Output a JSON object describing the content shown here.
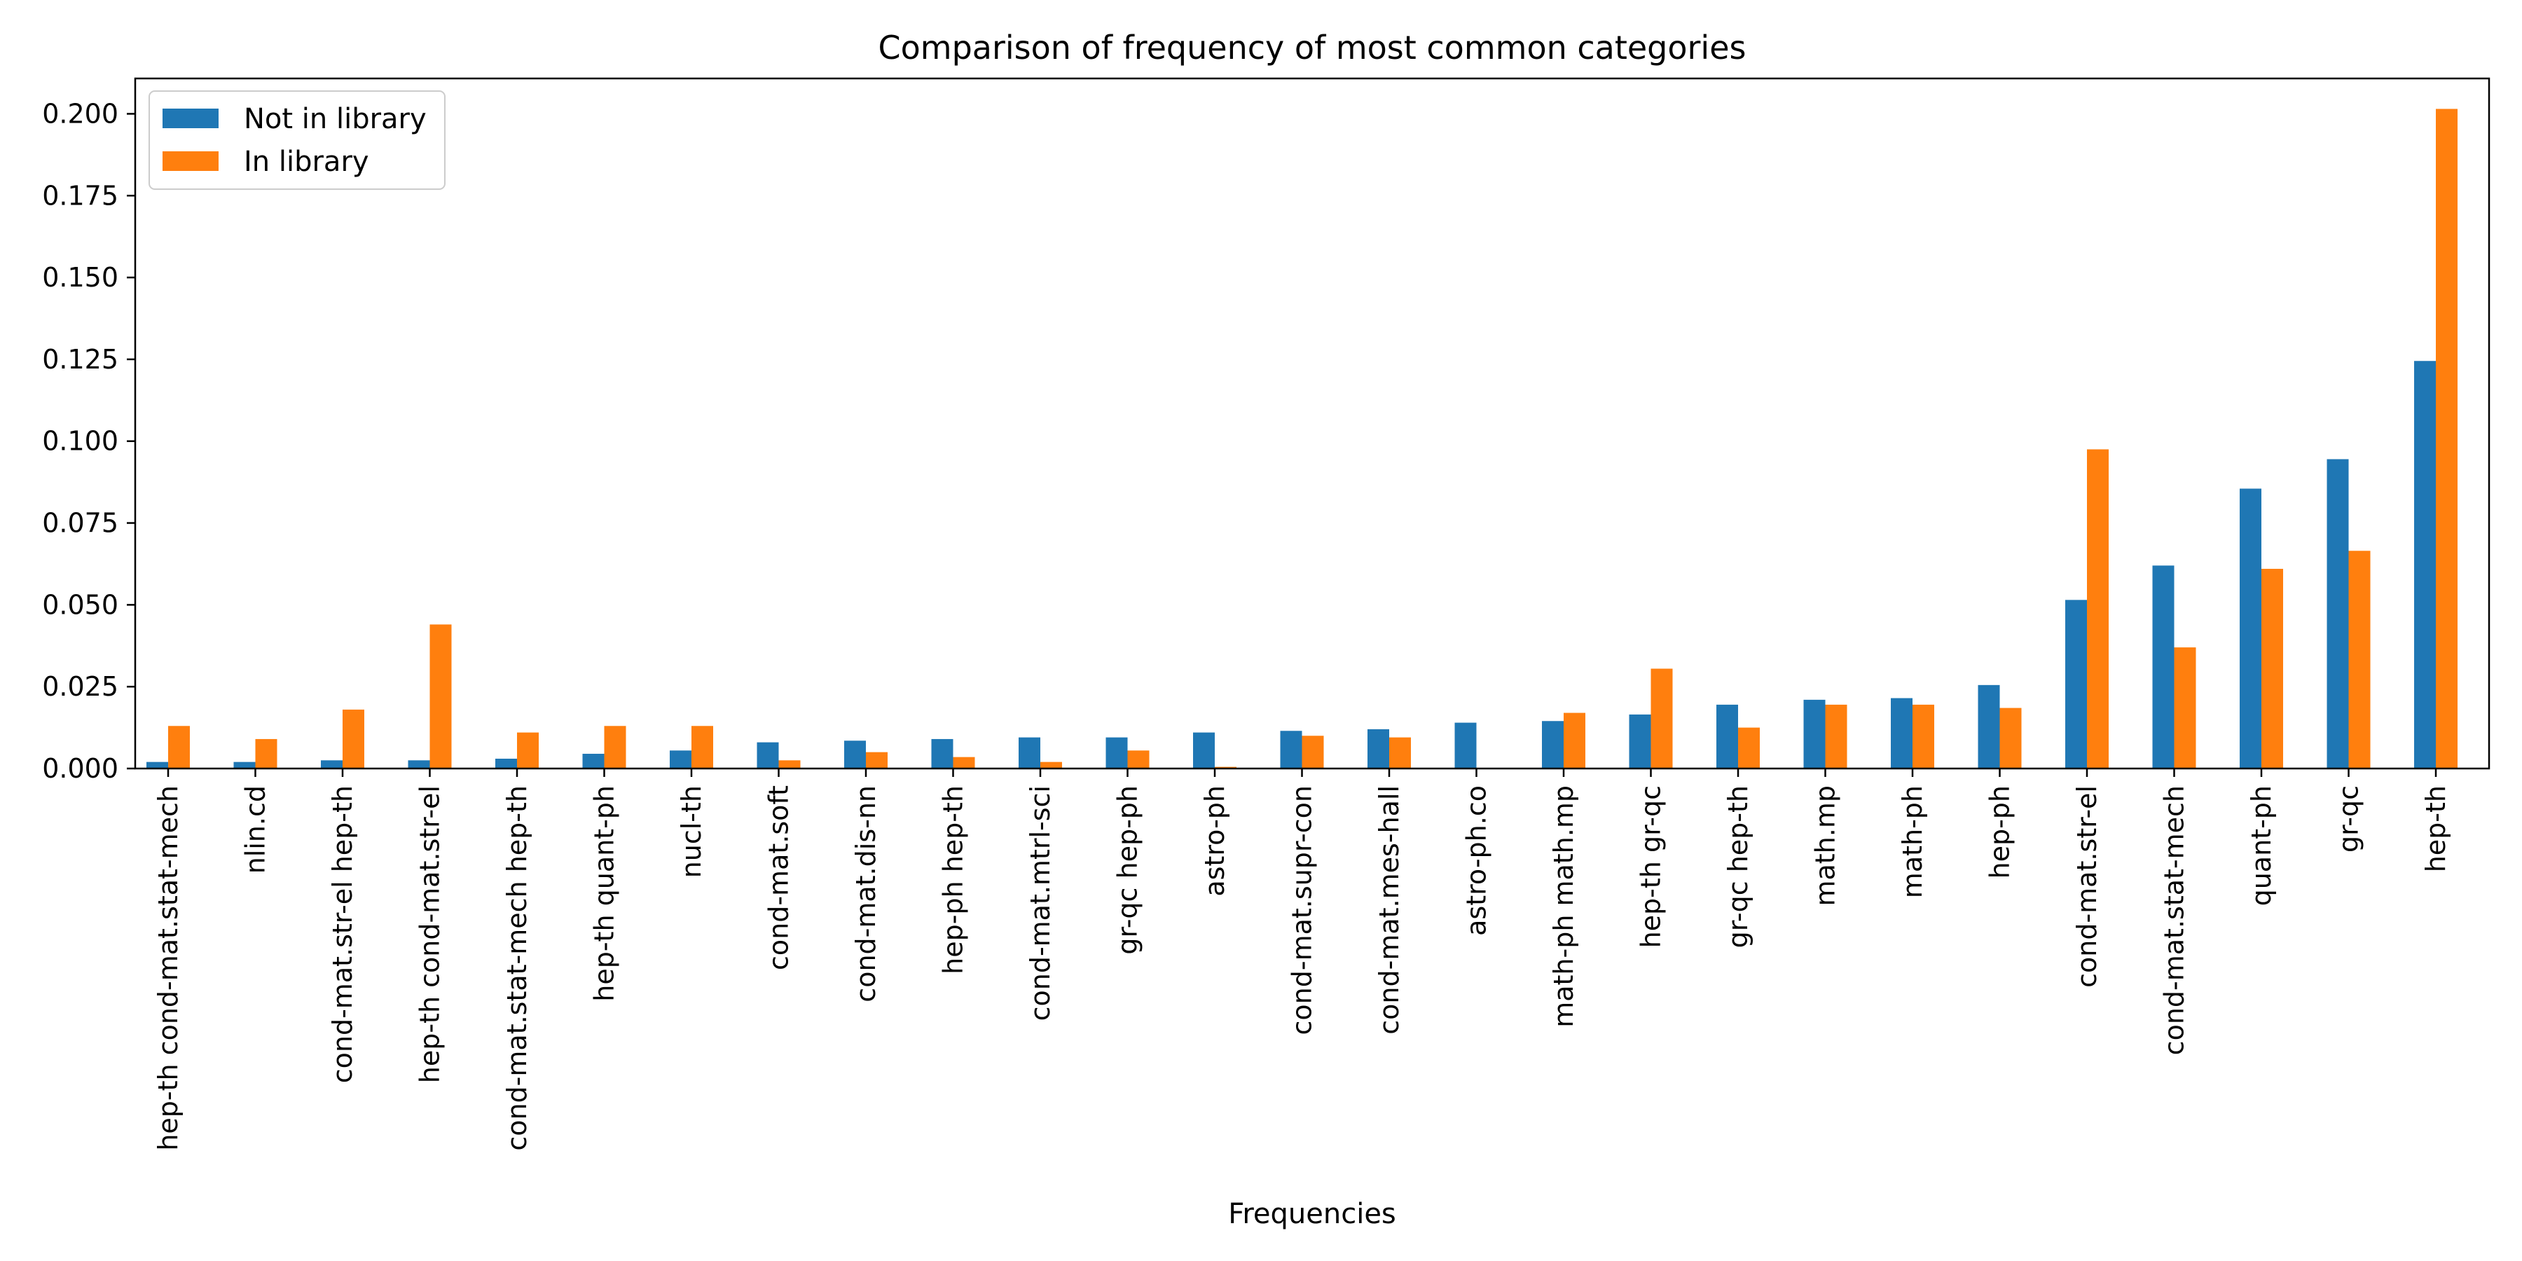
{
  "chart_data": {
    "type": "bar",
    "title": "Comparison of frequency of most common categories",
    "xlabel": "Frequencies",
    "ylabel": "",
    "ylim": [
      0,
      0.21
    ],
    "yticks": [
      "0.000",
      "0.025",
      "0.050",
      "0.075",
      "0.100",
      "0.125",
      "0.150",
      "0.175",
      "0.200"
    ],
    "grid": false,
    "legend_position": "top-left",
    "categories": [
      "hep-th cond-mat.stat-mech",
      "nlin.cd",
      "cond-mat.str-el hep-th",
      "hep-th cond-mat.str-el",
      "cond-mat.stat-mech hep-th",
      "hep-th quant-ph",
      "nucl-th",
      "cond-mat.soft",
      "cond-mat.dis-nn",
      "hep-ph hep-th",
      "cond-mat.mtrl-sci",
      "gr-qc hep-ph",
      "astro-ph",
      "cond-mat.supr-con",
      "cond-mat.mes-hall",
      "astro-ph.co",
      "math-ph math.mp",
      "hep-th gr-qc",
      "gr-qc hep-th",
      "math.mp",
      "math-ph",
      "hep-ph",
      "cond-mat.str-el",
      "cond-mat.stat-mech",
      "quant-ph",
      "gr-qc",
      "hep-th"
    ],
    "series": [
      {
        "name": "Not in library",
        "color": "#1f77b4",
        "values": [
          0.002,
          0.002,
          0.0025,
          0.0025,
          0.003,
          0.0045,
          0.0055,
          0.008,
          0.0085,
          0.009,
          0.0095,
          0.0095,
          0.011,
          0.0115,
          0.012,
          0.014,
          0.0145,
          0.0165,
          0.0195,
          0.021,
          0.0215,
          0.0255,
          0.0515,
          0.062,
          0.0855,
          0.0945,
          0.1245
        ]
      },
      {
        "name": "In library",
        "color": "#ff7f0e",
        "values": [
          0.013,
          0.009,
          0.018,
          0.044,
          0.011,
          0.013,
          0.013,
          0.0025,
          0.005,
          0.0035,
          0.002,
          0.0055,
          0.0005,
          0.01,
          0.0095,
          0.0,
          0.017,
          0.0305,
          0.0125,
          0.0195,
          0.0195,
          0.0185,
          0.0975,
          0.037,
          0.061,
          0.0665,
          0.2015
        ]
      }
    ]
  }
}
